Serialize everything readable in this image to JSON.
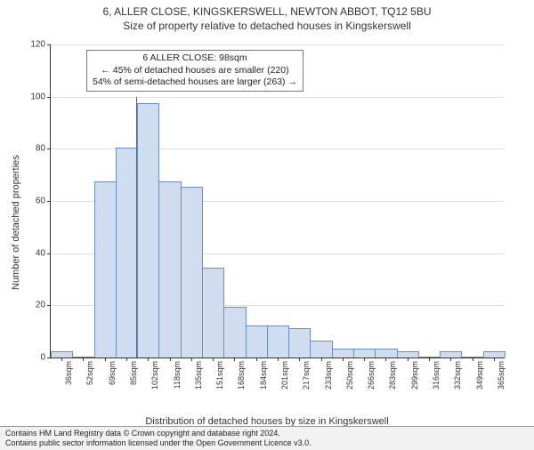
{
  "title": "6, ALLER CLOSE, KINGSKERSWELL, NEWTON ABBOT, TQ12 5BU",
  "subtitle": "Size of property relative to detached houses in Kingskerswell",
  "ylabel": "Number of detached properties",
  "xlabel": "Distribution of detached houses by size in Kingskerswell",
  "chart": {
    "type": "histogram",
    "ylim": [
      0,
      120
    ],
    "ytick_step": 20,
    "bar_fill": "#d0ddf0",
    "bar_stroke": "#6a8cc7",
    "grid_color": "#e0e0e0",
    "background": "#ffffff",
    "bins": [
      {
        "label": "36sqm",
        "value": 2
      },
      {
        "label": "52sqm",
        "value": 0
      },
      {
        "label": "69sqm",
        "value": 67
      },
      {
        "label": "85sqm",
        "value": 80
      },
      {
        "label": "102sqm",
        "value": 97
      },
      {
        "label": "118sqm",
        "value": 67
      },
      {
        "label": "135sqm",
        "value": 65
      },
      {
        "label": "151sqm",
        "value": 34
      },
      {
        "label": "168sqm",
        "value": 19
      },
      {
        "label": "184sqm",
        "value": 12
      },
      {
        "label": "201sqm",
        "value": 12
      },
      {
        "label": "217sqm",
        "value": 11
      },
      {
        "label": "233sqm",
        "value": 6
      },
      {
        "label": "250sqm",
        "value": 3
      },
      {
        "label": "266sqm",
        "value": 3
      },
      {
        "label": "283sqm",
        "value": 3
      },
      {
        "label": "299sqm",
        "value": 2
      },
      {
        "label": "316sqm",
        "value": 0
      },
      {
        "label": "332sqm",
        "value": 2
      },
      {
        "label": "349sqm",
        "value": 0
      },
      {
        "label": "365sqm",
        "value": 2
      }
    ],
    "marker": {
      "x_value": 98,
      "x_min": 36,
      "x_max": 365,
      "color": "#cc3333",
      "height_value": 100
    }
  },
  "annotation": {
    "line1": "6 ALLER CLOSE: 98sqm",
    "line2": "← 45% of detached houses are smaller (220)",
    "line3": "54% of semi-detached houses are larger (263) →"
  },
  "footer": {
    "line1": "Contains HM Land Registry data © Crown copyright and database right 2024.",
    "line2": "Contains public sector information licensed under the Open Government Licence v3.0."
  }
}
